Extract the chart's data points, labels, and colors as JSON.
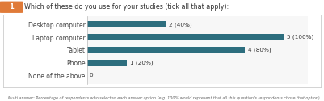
{
  "title": "Which of these do you use for your studies (tick all that apply):",
  "title_number": "1",
  "categories": [
    "Desktop computer",
    "Laptop computer",
    "Tablet",
    "Phone",
    "None of the above"
  ],
  "values": [
    40,
    100,
    80,
    20,
    0
  ],
  "counts": [
    "2 (40%)",
    "5 (100%)",
    "4 (80%)",
    "1 (20%)",
    "0"
  ],
  "bar_color": "#2d6e7e",
  "chart_bg": "#ffffff",
  "outer_bg": "#ffffff",
  "title_bg": "#e07b39",
  "title_color": "#ffffff",
  "border_color": "#cccccc",
  "text_color": "#555555",
  "xlim": [
    0,
    112
  ],
  "footnote": "Multi answer: Percentage of respondents who selected each answer option (e.g. 100% would represent that all this question's respondents chose that option)"
}
